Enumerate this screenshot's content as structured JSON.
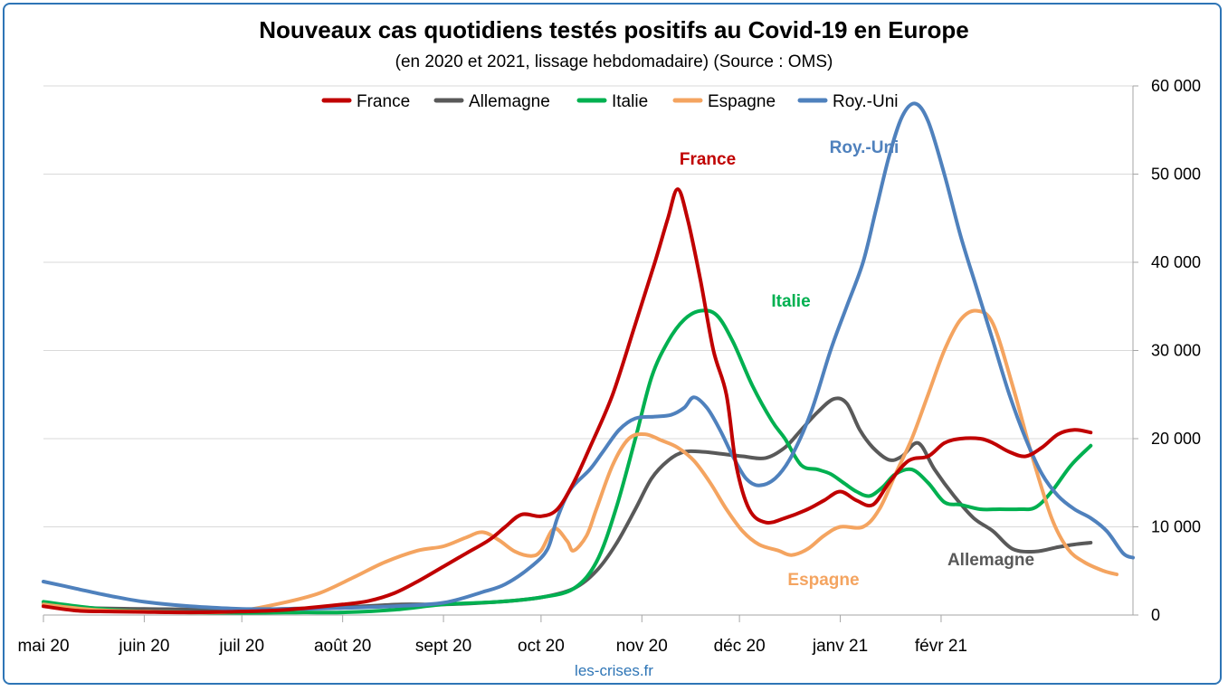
{
  "chart_data": {
    "type": "line",
    "title": "Nouveaux cas quotidiens testés positifs au Covid-19 en Europe",
    "subtitle": "(en 2020 et 2021, lissage hebdomadaire) (Source : OMS)",
    "source": "les-crises.fr",
    "x_ticks": [
      "mai 20",
      "juin 20",
      "juil 20",
      "août 20",
      "sept 20",
      "oct 20",
      "nov 20",
      "déc 20",
      "janv 21",
      "févr 21"
    ],
    "y_ticks": [
      "0",
      "10 000",
      "20 000",
      "30 000",
      "40 000",
      "50 000",
      "60 000"
    ],
    "ylim": [
      0,
      60000
    ],
    "x_range_days": [
      0,
      300
    ],
    "grid": "horizontal",
    "legend_position": "top",
    "series": [
      {
        "name": "France",
        "color": "#c00000",
        "annotation": "France",
        "points": [
          [
            0,
            1000
          ],
          [
            10,
            500
          ],
          [
            20,
            400
          ],
          [
            31,
            350
          ],
          [
            45,
            300
          ],
          [
            61,
            400
          ],
          [
            75,
            600
          ],
          [
            92,
            1200
          ],
          [
            100,
            1600
          ],
          [
            108,
            2500
          ],
          [
            115,
            3800
          ],
          [
            123,
            5500
          ],
          [
            130,
            7000
          ],
          [
            137,
            8500
          ],
          [
            142,
            10000
          ],
          [
            147,
            11400
          ],
          [
            153,
            11200
          ],
          [
            158,
            12000
          ],
          [
            163,
            15000
          ],
          [
            168,
            19000
          ],
          [
            175,
            25000
          ],
          [
            182,
            33000
          ],
          [
            188,
            40000
          ],
          [
            192,
            45000
          ],
          [
            195,
            48300
          ],
          [
            198,
            45000
          ],
          [
            202,
            38000
          ],
          [
            206,
            30000
          ],
          [
            210,
            25000
          ],
          [
            213,
            17000
          ],
          [
            217,
            12000
          ],
          [
            222,
            10500
          ],
          [
            228,
            11000
          ],
          [
            235,
            12000
          ],
          [
            240,
            13000
          ],
          [
            245,
            14000
          ],
          [
            250,
            13000
          ],
          [
            255,
            12500
          ],
          [
            260,
            15000
          ],
          [
            266,
            17500
          ],
          [
            272,
            18000
          ],
          [
            277,
            19500
          ],
          [
            282,
            20000
          ],
          [
            288,
            20000
          ],
          [
            292,
            19500
          ],
          [
            297,
            18500
          ],
          [
            302,
            18000
          ],
          [
            307,
            19000
          ],
          [
            312,
            20500
          ],
          [
            317,
            21000
          ],
          [
            322,
            20700
          ]
        ]
      },
      {
        "name": "Allemagne",
        "color": "#595959",
        "annotation": "Allemagne",
        "points": [
          [
            0,
            1200
          ],
          [
            15,
            800
          ],
          [
            31,
            700
          ],
          [
            61,
            600
          ],
          [
            92,
            900
          ],
          [
            110,
            1200
          ],
          [
            123,
            1200
          ],
          [
            140,
            1500
          ],
          [
            153,
            2000
          ],
          [
            163,
            3000
          ],
          [
            170,
            5000
          ],
          [
            176,
            8000
          ],
          [
            182,
            12000
          ],
          [
            187,
            15500
          ],
          [
            192,
            17500
          ],
          [
            197,
            18500
          ],
          [
            203,
            18500
          ],
          [
            208,
            18300
          ],
          [
            215,
            18000
          ],
          [
            222,
            17800
          ],
          [
            228,
            19000
          ],
          [
            233,
            21000
          ],
          [
            238,
            23000
          ],
          [
            243,
            24500
          ],
          [
            247,
            24000
          ],
          [
            251,
            21000
          ],
          [
            255,
            19000
          ],
          [
            260,
            17600
          ],
          [
            264,
            18000
          ],
          [
            269,
            19500
          ],
          [
            274,
            16500
          ],
          [
            280,
            13500
          ],
          [
            286,
            11000
          ],
          [
            292,
            9500
          ],
          [
            298,
            7500
          ],
          [
            305,
            7200
          ],
          [
            312,
            7700
          ],
          [
            317,
            8000
          ],
          [
            322,
            8200
          ]
        ]
      },
      {
        "name": "Italie",
        "color": "#00b050",
        "annotation": "Italie",
        "points": [
          [
            0,
            1500
          ],
          [
            15,
            800
          ],
          [
            31,
            400
          ],
          [
            61,
            250
          ],
          [
            80,
            300
          ],
          [
            92,
            300
          ],
          [
            108,
            600
          ],
          [
            123,
            1200
          ],
          [
            140,
            1500
          ],
          [
            153,
            2000
          ],
          [
            163,
            3000
          ],
          [
            170,
            6000
          ],
          [
            176,
            12000
          ],
          [
            182,
            20000
          ],
          [
            187,
            27000
          ],
          [
            192,
            31000
          ],
          [
            197,
            33500
          ],
          [
            202,
            34500
          ],
          [
            207,
            34000
          ],
          [
            212,
            31000
          ],
          [
            218,
            26000
          ],
          [
            224,
            22000
          ],
          [
            228,
            20000
          ],
          [
            233,
            17000
          ],
          [
            238,
            16500
          ],
          [
            242,
            16000
          ],
          [
            246,
            15000
          ],
          [
            250,
            14000
          ],
          [
            254,
            13500
          ],
          [
            258,
            14500
          ],
          [
            262,
            16000
          ],
          [
            267,
            16500
          ],
          [
            272,
            15000
          ],
          [
            277,
            12800
          ],
          [
            282,
            12500
          ],
          [
            288,
            12000
          ],
          [
            294,
            12000
          ],
          [
            300,
            12000
          ],
          [
            305,
            12200
          ],
          [
            310,
            14000
          ],
          [
            316,
            17000
          ],
          [
            322,
            19200
          ]
        ]
      },
      {
        "name": "Espagne",
        "color": "#f4a460",
        "annotation": "Espagne",
        "points": [
          [
            0,
            1200
          ],
          [
            15,
            600
          ],
          [
            31,
            400
          ],
          [
            50,
            300
          ],
          [
            61,
            500
          ],
          [
            75,
            1500
          ],
          [
            85,
            2500
          ],
          [
            95,
            4200
          ],
          [
            105,
            6000
          ],
          [
            115,
            7300
          ],
          [
            123,
            7800
          ],
          [
            130,
            8800
          ],
          [
            135,
            9400
          ],
          [
            140,
            8500
          ],
          [
            145,
            7200
          ],
          [
            150,
            6700
          ],
          [
            153,
            7300
          ],
          [
            157,
            9800
          ],
          [
            161,
            8400
          ],
          [
            163,
            7300
          ],
          [
            167,
            9000
          ],
          [
            170,
            12000
          ],
          [
            175,
            17000
          ],
          [
            180,
            20000
          ],
          [
            185,
            20500
          ],
          [
            190,
            19800
          ],
          [
            195,
            19000
          ],
          [
            200,
            17500
          ],
          [
            205,
            15000
          ],
          [
            210,
            12000
          ],
          [
            215,
            9500
          ],
          [
            220,
            8000
          ],
          [
            226,
            7300
          ],
          [
            230,
            6800
          ],
          [
            235,
            7500
          ],
          [
            240,
            9000
          ],
          [
            245,
            10000
          ],
          [
            252,
            10000
          ],
          [
            257,
            12000
          ],
          [
            262,
            16000
          ],
          [
            267,
            20000
          ],
          [
            272,
            25000
          ],
          [
            277,
            30000
          ],
          [
            282,
            33500
          ],
          [
            287,
            34500
          ],
          [
            292,
            33000
          ],
          [
            298,
            26000
          ],
          [
            304,
            18000
          ],
          [
            310,
            11000
          ],
          [
            315,
            7500
          ],
          [
            320,
            6000
          ],
          [
            326,
            5000
          ],
          [
            330,
            4600
          ]
        ]
      },
      {
        "name": "Roy.-Uni",
        "color": "#4f81bd",
        "annotation": "Roy.-Uni",
        "points": [
          [
            0,
            3800
          ],
          [
            10,
            3000
          ],
          [
            20,
            2200
          ],
          [
            31,
            1500
          ],
          [
            45,
            1000
          ],
          [
            61,
            700
          ],
          [
            80,
            700
          ],
          [
            92,
            800
          ],
          [
            108,
            1000
          ],
          [
            123,
            1400
          ],
          [
            135,
            2600
          ],
          [
            142,
            3500
          ],
          [
            150,
            5500
          ],
          [
            155,
            7500
          ],
          [
            158,
            11000
          ],
          [
            162,
            14200
          ],
          [
            168,
            16500
          ],
          [
            172,
            18500
          ],
          [
            177,
            21000
          ],
          [
            182,
            22300
          ],
          [
            188,
            22500
          ],
          [
            193,
            22700
          ],
          [
            197,
            23500
          ],
          [
            200,
            24700
          ],
          [
            204,
            23500
          ],
          [
            208,
            21000
          ],
          [
            212,
            18000
          ],
          [
            216,
            15500
          ],
          [
            220,
            14700
          ],
          [
            225,
            15500
          ],
          [
            230,
            18000
          ],
          [
            236,
            23000
          ],
          [
            242,
            30000
          ],
          [
            247,
            35000
          ],
          [
            252,
            40000
          ],
          [
            256,
            46000
          ],
          [
            260,
            52000
          ],
          [
            264,
            56500
          ],
          [
            268,
            58000
          ],
          [
            272,
            56000
          ],
          [
            277,
            50000
          ],
          [
            282,
            43000
          ],
          [
            287,
            37000
          ],
          [
            292,
            31000
          ],
          [
            297,
            25000
          ],
          [
            302,
            20000
          ],
          [
            307,
            16000
          ],
          [
            312,
            13500
          ],
          [
            317,
            12000
          ],
          [
            322,
            11000
          ],
          [
            327,
            9500
          ],
          [
            332,
            7000
          ],
          [
            335,
            6500
          ]
        ]
      }
    ]
  }
}
